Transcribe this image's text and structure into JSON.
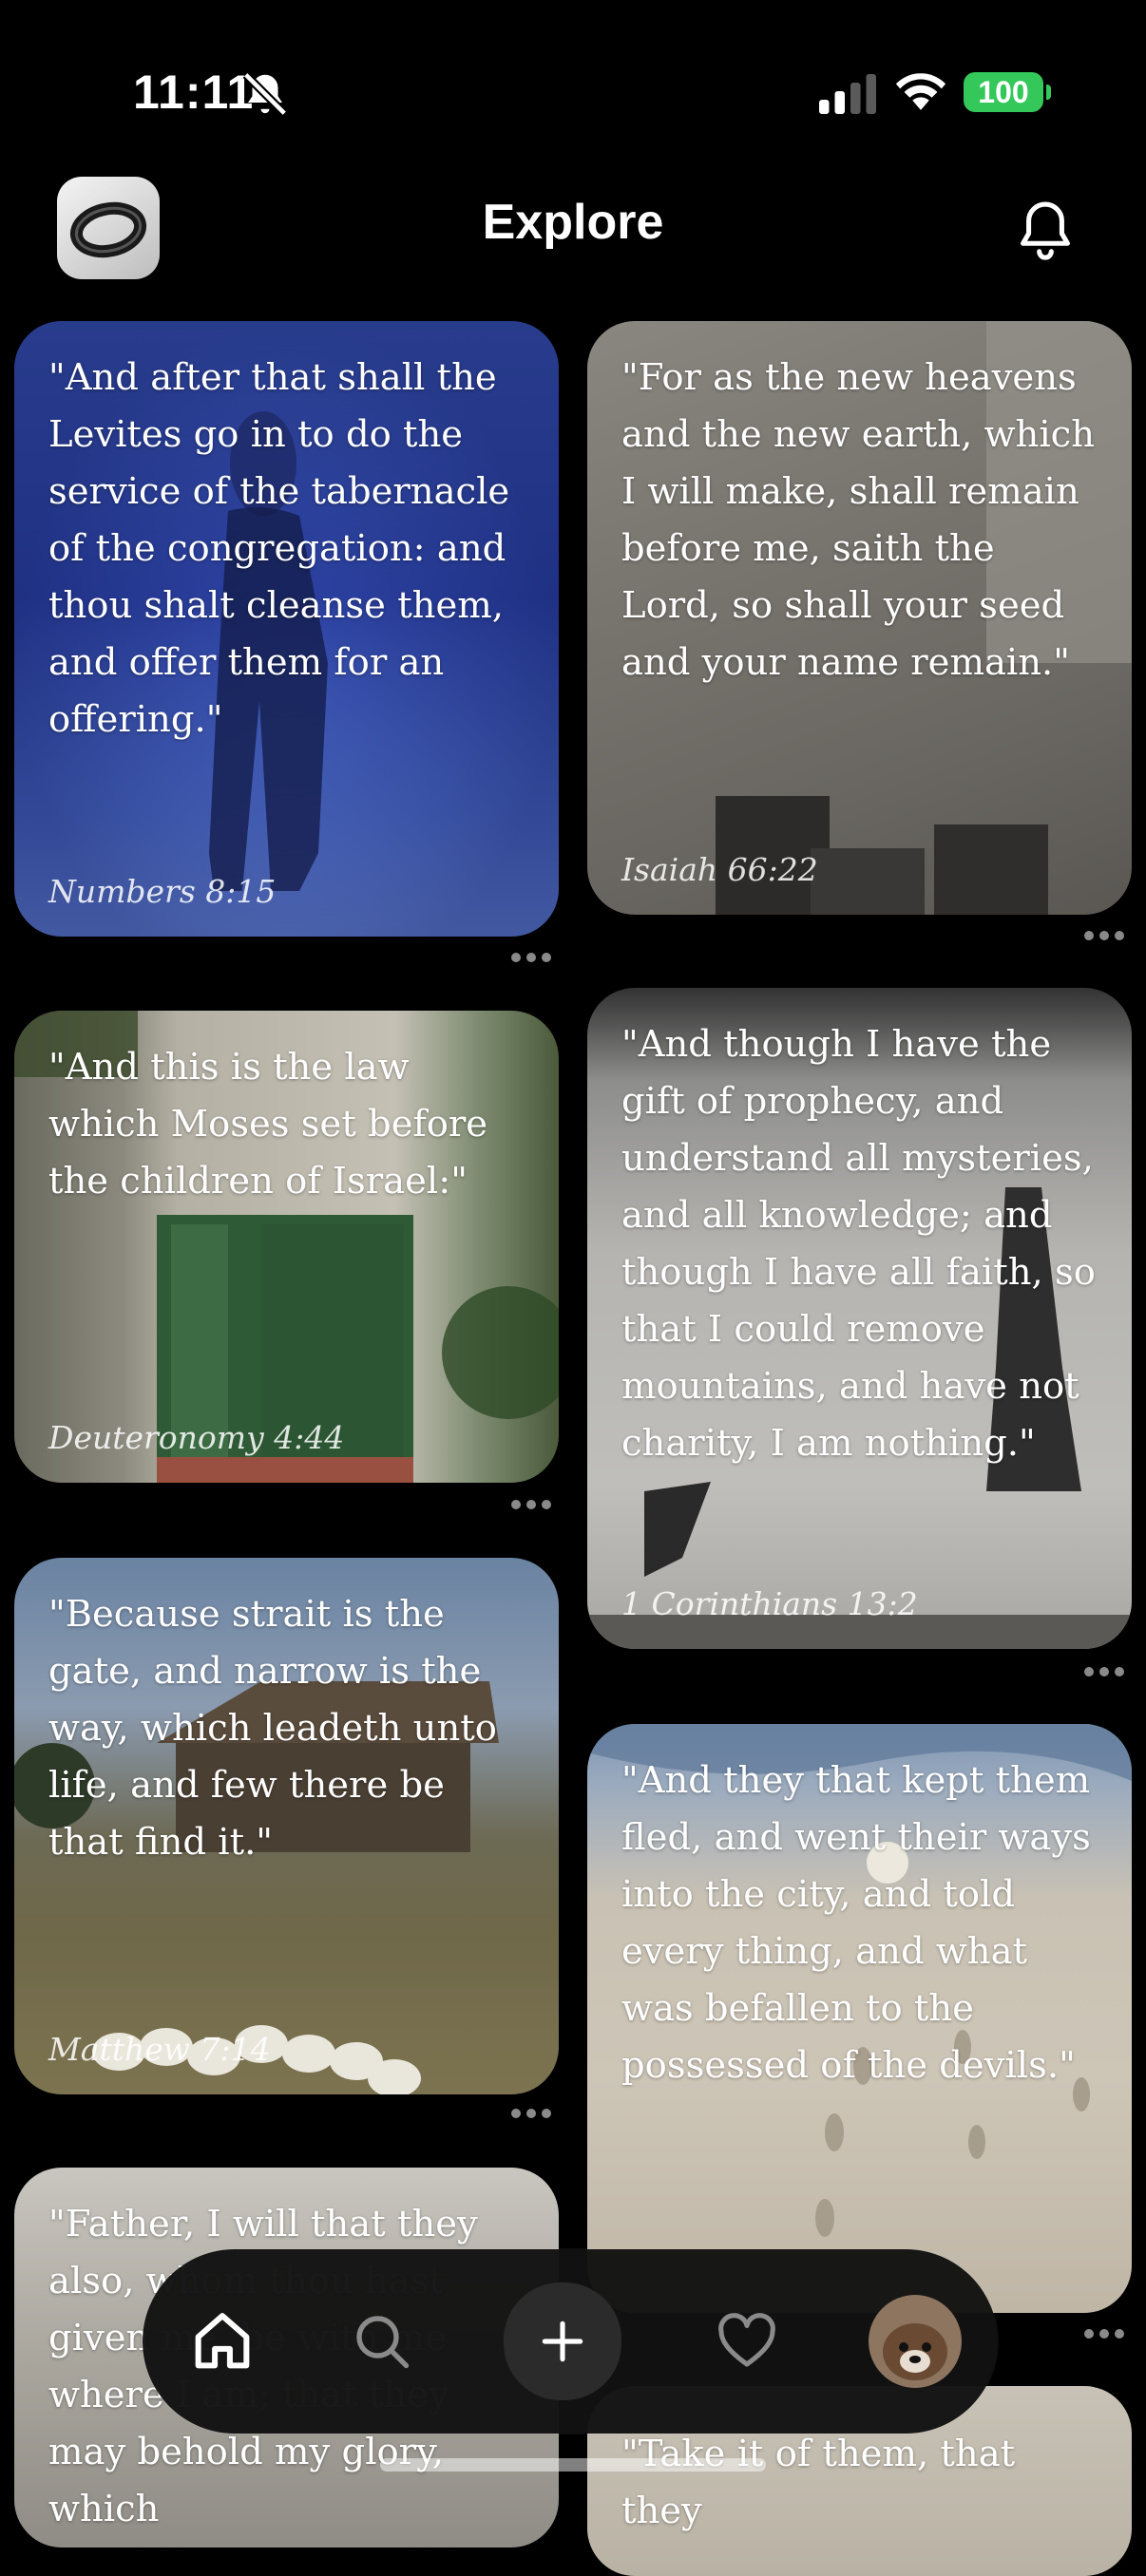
{
  "status_bar": {
    "time": "11:11",
    "battery": "100"
  },
  "header": {
    "title": "Explore"
  },
  "cards": [
    {
      "quote": "\"And after that shall the Levites go in to do the service of the tabernacle of the congregation: and thou shalt cleanse them, and offer them for an offering.\"",
      "reference": "Numbers 8:15"
    },
    {
      "quote": "\"For as the new heavens and the new earth, which I will make, shall remain before me, saith the Lord, so shall your seed and your name remain.\"",
      "reference": "Isaiah 66:22"
    },
    {
      "quote": "\"And this is the law which Moses set before the children of Israel:\"",
      "reference": "Deuteronomy 4:44"
    },
    {
      "quote": "\"And though I have the gift of prophecy, and understand all mysteries, and all knowledge; and though I have all faith, so that I could remove mountains, and have not charity, I am nothing.\"",
      "reference": "1 Corinthians 13:2"
    },
    {
      "quote": "\"Because strait is the gate, and narrow is the way, which leadeth unto life, and few there be that find it.\"",
      "reference": "Matthew 7:14"
    },
    {
      "quote": "\"And they that kept them fled, and went their ways into the city, and told every thing, and what was befallen to the possessed of the devils.\"",
      "reference": ""
    },
    {
      "quote": "\"Father, I will that they also, whom thou hast given me, be with me where I am; that they may behold my glory, which",
      "reference": ""
    },
    {
      "quote": "\"Take it of them, that they",
      "reference": ""
    }
  ],
  "nav": {
    "items": [
      "home-icon",
      "search-icon",
      "plus-icon",
      "heart-icon",
      "profile-avatar"
    ],
    "active": "home-icon"
  },
  "colors": {
    "battery": "#34c759",
    "background": "#000000",
    "nav_background": "#121212"
  }
}
